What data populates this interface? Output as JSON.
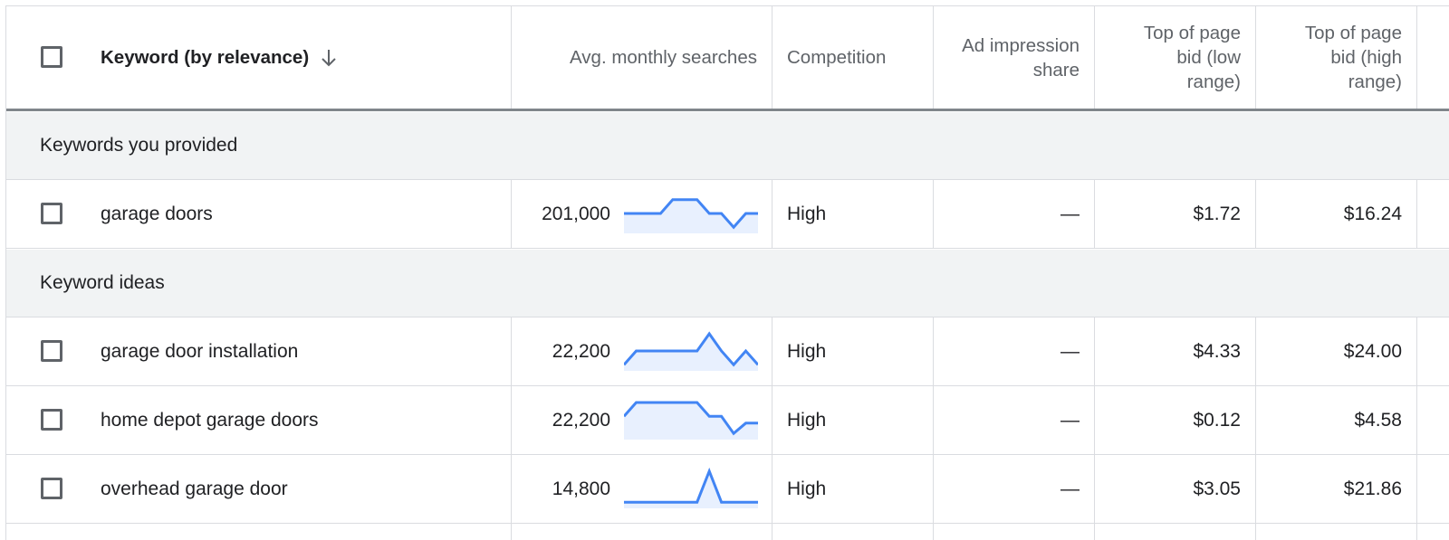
{
  "columns": {
    "keyword": "Keyword (by relevance)",
    "avg_monthly_searches": "Avg. monthly searches",
    "competition": "Competition",
    "ad_impression_share_line1": "Ad impression",
    "ad_impression_share_line2": "share",
    "bid_low_line1": "Top of page",
    "bid_low_line2": "bid (low",
    "bid_low_line3": "range)",
    "bid_high_line1": "Top of page",
    "bid_high_line2": "bid (high",
    "bid_high_line3": "range)"
  },
  "groups": {
    "provided": "Keywords you provided",
    "ideas": "Keyword ideas"
  },
  "rows": [
    {
      "keyword": "garage doors",
      "avg": "201,000",
      "competition": "High",
      "ad_share": "—",
      "bid_low": "$1.72",
      "bid_high": "$16.24",
      "trend": [
        5,
        5,
        5,
        5,
        9,
        9,
        9,
        5,
        5,
        1,
        5,
        5
      ]
    },
    {
      "keyword": "garage door installation",
      "avg": "22,200",
      "competition": "High",
      "ad_share": "—",
      "bid_low": "$4.33",
      "bid_high": "$24.00",
      "trend": [
        1,
        5,
        5,
        5,
        5,
        5,
        5,
        10,
        5,
        1,
        5,
        1
      ]
    },
    {
      "keyword": "home depot garage doors",
      "avg": "22,200",
      "competition": "High",
      "ad_share": "—",
      "bid_low": "$0.12",
      "bid_high": "$4.58",
      "trend": [
        6,
        10,
        10,
        10,
        10,
        10,
        10,
        6,
        6,
        1,
        4,
        4
      ]
    },
    {
      "keyword": "overhead garage door",
      "avg": "14,800",
      "competition": "High",
      "ad_share": "—",
      "bid_low": "$3.05",
      "bid_high": "$21.86",
      "trend": [
        1,
        1,
        1,
        1,
        1,
        1,
        1,
        10,
        1,
        1,
        1,
        1
      ]
    }
  ],
  "colors": {
    "accent": "#4285f4",
    "spark_fill": "#e8f0fe",
    "group_bg": "#f1f3f4"
  },
  "icons": {
    "sort": "arrow-down-icon",
    "checkbox": "checkbox-icon"
  }
}
